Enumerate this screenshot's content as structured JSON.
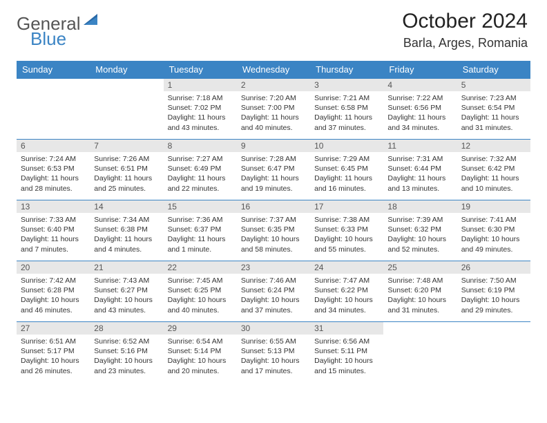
{
  "brand": {
    "part1": "General",
    "part2": "Blue"
  },
  "header": {
    "title": "October 2024",
    "location": "Barla, Arges, Romania"
  },
  "colors": {
    "accent": "#3b84c4",
    "daynum_bg": "#e7e7e7",
    "text": "#333333",
    "row_border": "#3b84c4",
    "background": "#ffffff"
  },
  "dayNames": [
    "Sunday",
    "Monday",
    "Tuesday",
    "Wednesday",
    "Thursday",
    "Friday",
    "Saturday"
  ],
  "weeks": [
    [
      null,
      null,
      {
        "n": "1",
        "sr": "Sunrise: 7:18 AM",
        "ss": "Sunset: 7:02 PM",
        "dl": "Daylight: 11 hours and 43 minutes."
      },
      {
        "n": "2",
        "sr": "Sunrise: 7:20 AM",
        "ss": "Sunset: 7:00 PM",
        "dl": "Daylight: 11 hours and 40 minutes."
      },
      {
        "n": "3",
        "sr": "Sunrise: 7:21 AM",
        "ss": "Sunset: 6:58 PM",
        "dl": "Daylight: 11 hours and 37 minutes."
      },
      {
        "n": "4",
        "sr": "Sunrise: 7:22 AM",
        "ss": "Sunset: 6:56 PM",
        "dl": "Daylight: 11 hours and 34 minutes."
      },
      {
        "n": "5",
        "sr": "Sunrise: 7:23 AM",
        "ss": "Sunset: 6:54 PM",
        "dl": "Daylight: 11 hours and 31 minutes."
      }
    ],
    [
      {
        "n": "6",
        "sr": "Sunrise: 7:24 AM",
        "ss": "Sunset: 6:53 PM",
        "dl": "Daylight: 11 hours and 28 minutes."
      },
      {
        "n": "7",
        "sr": "Sunrise: 7:26 AM",
        "ss": "Sunset: 6:51 PM",
        "dl": "Daylight: 11 hours and 25 minutes."
      },
      {
        "n": "8",
        "sr": "Sunrise: 7:27 AM",
        "ss": "Sunset: 6:49 PM",
        "dl": "Daylight: 11 hours and 22 minutes."
      },
      {
        "n": "9",
        "sr": "Sunrise: 7:28 AM",
        "ss": "Sunset: 6:47 PM",
        "dl": "Daylight: 11 hours and 19 minutes."
      },
      {
        "n": "10",
        "sr": "Sunrise: 7:29 AM",
        "ss": "Sunset: 6:45 PM",
        "dl": "Daylight: 11 hours and 16 minutes."
      },
      {
        "n": "11",
        "sr": "Sunrise: 7:31 AM",
        "ss": "Sunset: 6:44 PM",
        "dl": "Daylight: 11 hours and 13 minutes."
      },
      {
        "n": "12",
        "sr": "Sunrise: 7:32 AM",
        "ss": "Sunset: 6:42 PM",
        "dl": "Daylight: 11 hours and 10 minutes."
      }
    ],
    [
      {
        "n": "13",
        "sr": "Sunrise: 7:33 AM",
        "ss": "Sunset: 6:40 PM",
        "dl": "Daylight: 11 hours and 7 minutes."
      },
      {
        "n": "14",
        "sr": "Sunrise: 7:34 AM",
        "ss": "Sunset: 6:38 PM",
        "dl": "Daylight: 11 hours and 4 minutes."
      },
      {
        "n": "15",
        "sr": "Sunrise: 7:36 AM",
        "ss": "Sunset: 6:37 PM",
        "dl": "Daylight: 11 hours and 1 minute."
      },
      {
        "n": "16",
        "sr": "Sunrise: 7:37 AM",
        "ss": "Sunset: 6:35 PM",
        "dl": "Daylight: 10 hours and 58 minutes."
      },
      {
        "n": "17",
        "sr": "Sunrise: 7:38 AM",
        "ss": "Sunset: 6:33 PM",
        "dl": "Daylight: 10 hours and 55 minutes."
      },
      {
        "n": "18",
        "sr": "Sunrise: 7:39 AM",
        "ss": "Sunset: 6:32 PM",
        "dl": "Daylight: 10 hours and 52 minutes."
      },
      {
        "n": "19",
        "sr": "Sunrise: 7:41 AM",
        "ss": "Sunset: 6:30 PM",
        "dl": "Daylight: 10 hours and 49 minutes."
      }
    ],
    [
      {
        "n": "20",
        "sr": "Sunrise: 7:42 AM",
        "ss": "Sunset: 6:28 PM",
        "dl": "Daylight: 10 hours and 46 minutes."
      },
      {
        "n": "21",
        "sr": "Sunrise: 7:43 AM",
        "ss": "Sunset: 6:27 PM",
        "dl": "Daylight: 10 hours and 43 minutes."
      },
      {
        "n": "22",
        "sr": "Sunrise: 7:45 AM",
        "ss": "Sunset: 6:25 PM",
        "dl": "Daylight: 10 hours and 40 minutes."
      },
      {
        "n": "23",
        "sr": "Sunrise: 7:46 AM",
        "ss": "Sunset: 6:24 PM",
        "dl": "Daylight: 10 hours and 37 minutes."
      },
      {
        "n": "24",
        "sr": "Sunrise: 7:47 AM",
        "ss": "Sunset: 6:22 PM",
        "dl": "Daylight: 10 hours and 34 minutes."
      },
      {
        "n": "25",
        "sr": "Sunrise: 7:48 AM",
        "ss": "Sunset: 6:20 PM",
        "dl": "Daylight: 10 hours and 31 minutes."
      },
      {
        "n": "26",
        "sr": "Sunrise: 7:50 AM",
        "ss": "Sunset: 6:19 PM",
        "dl": "Daylight: 10 hours and 29 minutes."
      }
    ],
    [
      {
        "n": "27",
        "sr": "Sunrise: 6:51 AM",
        "ss": "Sunset: 5:17 PM",
        "dl": "Daylight: 10 hours and 26 minutes."
      },
      {
        "n": "28",
        "sr": "Sunrise: 6:52 AM",
        "ss": "Sunset: 5:16 PM",
        "dl": "Daylight: 10 hours and 23 minutes."
      },
      {
        "n": "29",
        "sr": "Sunrise: 6:54 AM",
        "ss": "Sunset: 5:14 PM",
        "dl": "Daylight: 10 hours and 20 minutes."
      },
      {
        "n": "30",
        "sr": "Sunrise: 6:55 AM",
        "ss": "Sunset: 5:13 PM",
        "dl": "Daylight: 10 hours and 17 minutes."
      },
      {
        "n": "31",
        "sr": "Sunrise: 6:56 AM",
        "ss": "Sunset: 5:11 PM",
        "dl": "Daylight: 10 hours and 15 minutes."
      },
      null,
      null
    ]
  ]
}
